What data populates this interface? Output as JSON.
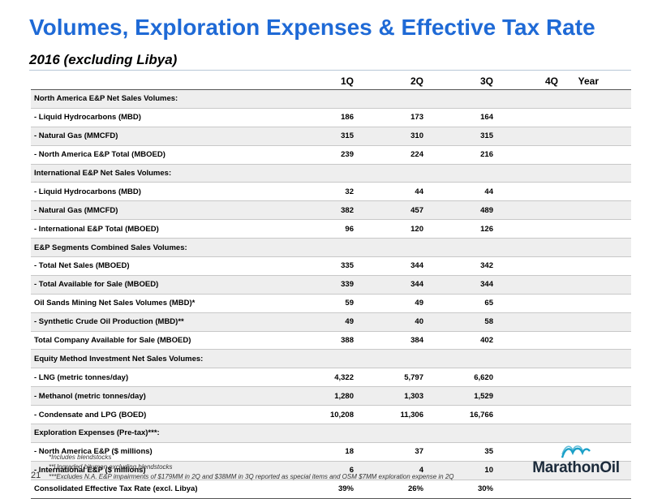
{
  "title": "Volumes, Exploration Expenses & Effective Tax Rate",
  "subtitle": "2016 (excluding Libya)",
  "columns": [
    "1Q",
    "2Q",
    "3Q",
    "4Q",
    "Year"
  ],
  "rows": [
    {
      "label": "North America E&P Net Sales Volumes:",
      "type": "section",
      "values": [
        "",
        "",
        "",
        "",
        ""
      ]
    },
    {
      "label": " - Liquid Hydrocarbons (MBD)",
      "type": "item",
      "values": [
        "186",
        "173",
        "164",
        "",
        ""
      ]
    },
    {
      "label": " - Natural Gas (MMCFD)",
      "type": "item",
      "values": [
        "315",
        "310",
        "315",
        "",
        ""
      ]
    },
    {
      "label": " - North America  E&P Total (MBOED)",
      "type": "item",
      "values": [
        "239",
        "224",
        "216",
        "",
        ""
      ]
    },
    {
      "label": "International E&P Net Sales Volumes:",
      "type": "section",
      "values": [
        "",
        "",
        "",
        "",
        ""
      ]
    },
    {
      "label": " - Liquid Hydrocarbons (MBD)",
      "type": "item",
      "values": [
        "32",
        "44",
        "44",
        "",
        ""
      ]
    },
    {
      "label": " - Natural Gas (MMCFD)",
      "type": "item",
      "values": [
        "382",
        "457",
        "489",
        "",
        ""
      ]
    },
    {
      "label": " - International  E&P Total (MBOED)",
      "type": "item",
      "values": [
        "96",
        "120",
        "126",
        "",
        ""
      ]
    },
    {
      "label": "E&P Segments Combined Sales Volumes:",
      "type": "section",
      "values": [
        "",
        "",
        "",
        "",
        ""
      ]
    },
    {
      "label": " - Total Net Sales (MBOED)",
      "type": "item",
      "values": [
        "335",
        "344",
        "342",
        "",
        ""
      ]
    },
    {
      "label": " - Total Available for Sale (MBOED)",
      "type": "item",
      "values": [
        "339",
        "344",
        "344",
        "",
        ""
      ]
    },
    {
      "label": "Oil Sands Mining Net Sales Volumes (MBD)*",
      "type": "section",
      "values": [
        "59",
        "49",
        "65",
        "",
        ""
      ]
    },
    {
      "label": " - Synthetic Crude Oil Production (MBD)**",
      "type": "item",
      "values": [
        "49",
        "40",
        "58",
        "",
        ""
      ]
    },
    {
      "label": "Total Company Available for Sale (MBOED)",
      "type": "section",
      "values": [
        "388",
        "384",
        "402",
        "",
        ""
      ]
    },
    {
      "label": "Equity Method Investment Net Sales Volumes:",
      "type": "section",
      "values": [
        "",
        "",
        "",
        "",
        ""
      ]
    },
    {
      "label": " - LNG (metric tonnes/day)",
      "type": "item",
      "values": [
        "4,322",
        "5,797",
        "6,620",
        "",
        ""
      ]
    },
    {
      "label": " - Methanol (metric tonnes/day)",
      "type": "item",
      "values": [
        "1,280",
        "1,303",
        "1,529",
        "",
        ""
      ]
    },
    {
      "label": " - Condensate and LPG (BOED)",
      "type": "item",
      "values": [
        "10,208",
        "11,306",
        "16,766",
        "",
        ""
      ]
    },
    {
      "label": "Exploration Expenses (Pre-tax)***:",
      "type": "section",
      "values": [
        "",
        "",
        "",
        "",
        ""
      ]
    },
    {
      "label": " - North America E&P ($ millions)",
      "type": "item",
      "values": [
        "18",
        "37",
        "35",
        "",
        ""
      ]
    },
    {
      "label": " - International  E&P ($ millions)",
      "type": "item",
      "values": [
        "6",
        "4",
        "10",
        "",
        ""
      ]
    },
    {
      "label": "Consolidated Effective Tax Rate (excl. Libya)",
      "type": "section",
      "values": [
        "39%",
        "26%",
        "30%",
        "",
        ""
      ]
    }
  ],
  "footnotes": [
    "*Includes blendstocks",
    "**Upgraded bitumen excluding blendstocks",
    "***Excludes N.A. E&P impairments of $179MM in 2Q and $38MM in 3Q reported as special items and OSM $7MM exploration expense in 2Q"
  ],
  "page_number": "21",
  "logo": {
    "text": "MarathonOil",
    "icon": "marathon-wave-icon",
    "color": "#1aa0c8"
  },
  "colors": {
    "title": "#1f6ad6",
    "row_shade": "#eeeeee"
  }
}
